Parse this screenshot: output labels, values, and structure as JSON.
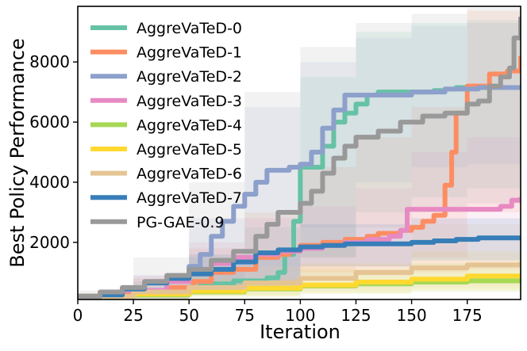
{
  "chart_data": {
    "type": "line",
    "title": "",
    "xlabel": "Iteration",
    "ylabel": "Best Policy Performance",
    "xlim": [
      0,
      199
    ],
    "ylim": [
      100,
      9850
    ],
    "xticks": [
      0,
      25,
      50,
      75,
      100,
      125,
      150,
      175
    ],
    "yticks": [
      2000,
      4000,
      6000,
      8000
    ],
    "grid": false,
    "legend_position": "top-left",
    "series": [
      {
        "name": "AggreVaTeD-0",
        "color": "#66c2a5",
        "points": [
          [
            0,
            200
          ],
          [
            20,
            320
          ],
          [
            40,
            480
          ],
          [
            55,
            620
          ],
          [
            70,
            720
          ],
          [
            85,
            820
          ],
          [
            90,
            1000
          ],
          [
            93,
            1600
          ],
          [
            97,
            2700
          ],
          [
            100,
            4500
          ],
          [
            105,
            4500
          ],
          [
            110,
            5200
          ],
          [
            115,
            6000
          ],
          [
            120,
            6300
          ],
          [
            125,
            6600
          ],
          [
            130,
            6900
          ],
          [
            135,
            7000
          ],
          [
            145,
            7000
          ],
          [
            155,
            7000
          ],
          [
            160,
            7050
          ],
          [
            165,
            7100
          ],
          [
            170,
            7150
          ],
          [
            185,
            7150
          ],
          [
            199,
            7200
          ]
        ],
        "band": [
          [
            0,
            100,
            300
          ],
          [
            25,
            200,
            700
          ],
          [
            50,
            300,
            1500
          ],
          [
            75,
            400,
            2500
          ],
          [
            100,
            1500,
            7500
          ],
          [
            125,
            3000,
            9000
          ],
          [
            150,
            3500,
            9300
          ],
          [
            175,
            3800,
            9400
          ],
          [
            199,
            4000,
            9500
          ]
        ]
      },
      {
        "name": "AggreVaTeD-1",
        "color": "#fc8d62",
        "points": [
          [
            0,
            200
          ],
          [
            20,
            300
          ],
          [
            40,
            500
          ],
          [
            52,
            700
          ],
          [
            60,
            1000
          ],
          [
            70,
            1100
          ],
          [
            80,
            1500
          ],
          [
            90,
            1600
          ],
          [
            95,
            1700
          ],
          [
            100,
            1900
          ],
          [
            110,
            2000
          ],
          [
            120,
            2100
          ],
          [
            130,
            2200
          ],
          [
            135,
            2300
          ],
          [
            145,
            2400
          ],
          [
            150,
            2500
          ],
          [
            155,
            2700
          ],
          [
            160,
            2900
          ],
          [
            165,
            3900
          ],
          [
            168,
            5000
          ],
          [
            170,
            6300
          ],
          [
            175,
            7200
          ],
          [
            185,
            7600
          ],
          [
            193,
            7700
          ],
          [
            199,
            8200
          ]
        ],
        "band": [
          [
            0,
            100,
            300
          ],
          [
            25,
            200,
            800
          ],
          [
            50,
            300,
            1800
          ],
          [
            75,
            500,
            3000
          ],
          [
            100,
            1000,
            4500
          ],
          [
            125,
            1200,
            5500
          ],
          [
            150,
            1500,
            6500
          ],
          [
            175,
            3000,
            9700
          ],
          [
            199,
            5500,
            9850
          ]
        ]
      },
      {
        "name": "AggreVaTeD-2",
        "color": "#8da0cb",
        "points": [
          [
            0,
            200
          ],
          [
            20,
            400
          ],
          [
            40,
            700
          ],
          [
            50,
            1200
          ],
          [
            55,
            1600
          ],
          [
            60,
            2200
          ],
          [
            65,
            2700
          ],
          [
            70,
            3200
          ],
          [
            75,
            3600
          ],
          [
            80,
            4000
          ],
          [
            85,
            4400
          ],
          [
            95,
            4500
          ],
          [
            100,
            4600
          ],
          [
            105,
            5000
          ],
          [
            110,
            5800
          ],
          [
            115,
            6400
          ],
          [
            120,
            6900
          ],
          [
            140,
            6900
          ],
          [
            150,
            7000
          ],
          [
            165,
            7100
          ],
          [
            180,
            7150
          ],
          [
            199,
            7200
          ]
        ],
        "band": [
          [
            0,
            100,
            300
          ],
          [
            25,
            250,
            900
          ],
          [
            50,
            500,
            2800
          ],
          [
            75,
            1200,
            6500
          ],
          [
            100,
            2500,
            8000
          ],
          [
            125,
            4000,
            8800
          ],
          [
            150,
            4500,
            9200
          ],
          [
            175,
            4600,
            9300
          ],
          [
            199,
            4700,
            9300
          ]
        ]
      },
      {
        "name": "AggreVaTeD-3",
        "color": "#e78ac3",
        "points": [
          [
            0,
            200
          ],
          [
            20,
            400
          ],
          [
            40,
            700
          ],
          [
            50,
            1000
          ],
          [
            55,
            1100
          ],
          [
            60,
            1300
          ],
          [
            70,
            1500
          ],
          [
            80,
            1600
          ],
          [
            90,
            1700
          ],
          [
            100,
            1800
          ],
          [
            110,
            1900
          ],
          [
            120,
            2000
          ],
          [
            130,
            2100
          ],
          [
            140,
            2200
          ],
          [
            145,
            2400
          ],
          [
            148,
            3100
          ],
          [
            155,
            3100
          ],
          [
            165,
            3100
          ],
          [
            175,
            3100
          ],
          [
            185,
            3100
          ],
          [
            190,
            3200
          ],
          [
            195,
            3400
          ],
          [
            199,
            3500
          ]
        ],
        "band": [
          [
            0,
            100,
            300
          ],
          [
            25,
            200,
            900
          ],
          [
            50,
            500,
            2000
          ],
          [
            75,
            700,
            2800
          ],
          [
            100,
            800,
            3200
          ],
          [
            125,
            900,
            3800
          ],
          [
            150,
            1000,
            5000
          ],
          [
            175,
            1100,
            5500
          ],
          [
            199,
            1200,
            6000
          ]
        ]
      },
      {
        "name": "AggreVaTeD-4",
        "color": "#a6d854",
        "points": [
          [
            0,
            200
          ],
          [
            25,
            250
          ],
          [
            50,
            350
          ],
          [
            75,
            450
          ],
          [
            100,
            550
          ],
          [
            125,
            620
          ],
          [
            150,
            680
          ],
          [
            175,
            720
          ],
          [
            199,
            750
          ]
        ],
        "band": [
          [
            0,
            100,
            300
          ],
          [
            50,
            200,
            700
          ],
          [
            100,
            300,
            1100
          ],
          [
            150,
            350,
            1300
          ],
          [
            199,
            400,
            1400
          ]
        ]
      },
      {
        "name": "AggreVaTeD-5",
        "color": "#ffd92f",
        "points": [
          [
            0,
            200
          ],
          [
            25,
            280
          ],
          [
            50,
            380
          ],
          [
            75,
            480
          ],
          [
            100,
            580
          ],
          [
            125,
            680
          ],
          [
            150,
            780
          ],
          [
            175,
            880
          ],
          [
            199,
            950
          ]
        ],
        "band": [
          [
            0,
            100,
            300
          ],
          [
            50,
            200,
            800
          ],
          [
            100,
            300,
            1300
          ],
          [
            150,
            400,
            1700
          ],
          [
            199,
            500,
            2000
          ]
        ]
      },
      {
        "name": "AggreVaTeD-6",
        "color": "#e5c494",
        "points": [
          [
            0,
            200
          ],
          [
            25,
            350
          ],
          [
            50,
            500
          ],
          [
            75,
            650
          ],
          [
            100,
            800
          ],
          [
            125,
            1000
          ],
          [
            150,
            1150
          ],
          [
            175,
            1250
          ],
          [
            199,
            1350
          ]
        ],
        "band": [
          [
            0,
            100,
            300
          ],
          [
            50,
            250,
            1200
          ],
          [
            100,
            400,
            2000
          ],
          [
            150,
            500,
            2600
          ],
          [
            199,
            600,
            3000
          ]
        ]
      },
      {
        "name": "AggreVaTeD-7",
        "color": "#377eb8",
        "points": [
          [
            0,
            200
          ],
          [
            10,
            250
          ],
          [
            20,
            450
          ],
          [
            30,
            650
          ],
          [
            40,
            800
          ],
          [
            50,
            950
          ],
          [
            60,
            1100
          ],
          [
            70,
            1350
          ],
          [
            80,
            1650
          ],
          [
            90,
            1750
          ],
          [
            100,
            1850
          ],
          [
            110,
            1900
          ],
          [
            120,
            1950
          ],
          [
            130,
            1950
          ],
          [
            140,
            1950
          ],
          [
            150,
            2000
          ],
          [
            160,
            2050
          ],
          [
            170,
            2100
          ],
          [
            180,
            2150
          ],
          [
            190,
            2150
          ],
          [
            199,
            2200
          ]
        ],
        "band": [
          [
            0,
            100,
            300
          ],
          [
            50,
            500,
            1600
          ],
          [
            100,
            1200,
            2600
          ],
          [
            150,
            1400,
            2800
          ],
          [
            199,
            1600,
            3000
          ]
        ]
      },
      {
        "name": "PG-GAE-0.9",
        "color": "#999999",
        "points": [
          [
            0,
            200
          ],
          [
            10,
            350
          ],
          [
            20,
            500
          ],
          [
            30,
            700
          ],
          [
            40,
            900
          ],
          [
            50,
            1100
          ],
          [
            60,
            1400
          ],
          [
            70,
            1700
          ],
          [
            80,
            2200
          ],
          [
            85,
            2600
          ],
          [
            90,
            3000
          ],
          [
            100,
            3300
          ],
          [
            105,
            3700
          ],
          [
            110,
            4300
          ],
          [
            115,
            4800
          ],
          [
            120,
            5200
          ],
          [
            125,
            5500
          ],
          [
            135,
            5700
          ],
          [
            145,
            6000
          ],
          [
            155,
            6200
          ],
          [
            165,
            6300
          ],
          [
            175,
            6600
          ],
          [
            180,
            6700
          ],
          [
            185,
            7200
          ],
          [
            190,
            7500
          ],
          [
            194,
            7800
          ],
          [
            196,
            8800
          ],
          [
            199,
            9500
          ]
        ],
        "band": [
          [
            0,
            100,
            400
          ],
          [
            25,
            250,
            1500
          ],
          [
            50,
            400,
            4000
          ],
          [
            75,
            700,
            7000
          ],
          [
            100,
            1500,
            8500
          ],
          [
            125,
            2500,
            9300
          ],
          [
            150,
            3000,
            9600
          ],
          [
            175,
            3300,
            9800
          ],
          [
            199,
            4000,
            9850
          ]
        ]
      }
    ]
  }
}
